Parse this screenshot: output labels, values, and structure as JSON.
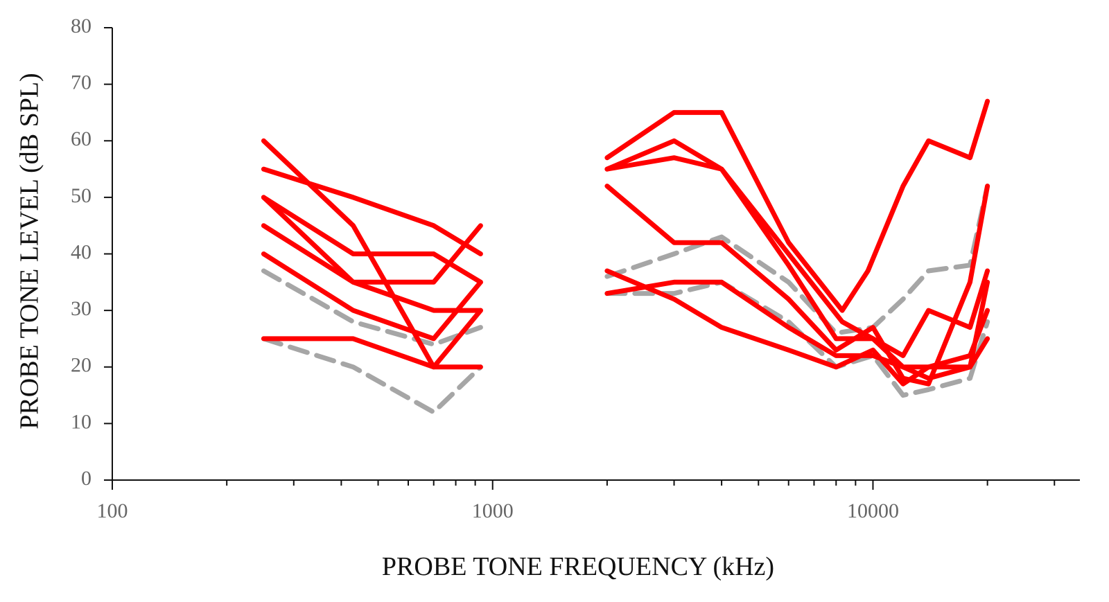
{
  "chart_data": {
    "type": "line",
    "title": "",
    "xlabel": "PROBE TONE FREQUENCY (kHz)",
    "ylabel": "PROBE TONE LEVEL (dB SPL)",
    "x_scale": "log",
    "xlim": [
      100,
      35000
    ],
    "ylim": [
      0,
      80
    ],
    "x_ticks": [
      100,
      1000,
      10000
    ],
    "x_tick_labels": [
      "100",
      "1000",
      "10000"
    ],
    "y_ticks": [
      0,
      10,
      20,
      30,
      40,
      50,
      60,
      70,
      80
    ],
    "y_tick_labels": [
      "0",
      "10",
      "20",
      "30",
      "40",
      "50",
      "60",
      "70",
      "80"
    ],
    "grid": false,
    "legend": "none",
    "colors": {
      "red": "#ff0000",
      "gray": "#a6a6a6"
    },
    "series": [
      {
        "color": "red",
        "dash": false,
        "x": [
          250,
          430,
          700,
          930
        ],
        "y": [
          60,
          45,
          20,
          20
        ]
      },
      {
        "color": "red",
        "dash": false,
        "x": [
          250,
          430,
          700,
          930
        ],
        "y": [
          55,
          50,
          45,
          40
        ]
      },
      {
        "color": "red",
        "dash": false,
        "x": [
          250,
          430,
          700,
          930
        ],
        "y": [
          50,
          40,
          40,
          35
        ]
      },
      {
        "color": "red",
        "dash": false,
        "x": [
          250,
          430,
          700,
          930
        ],
        "y": [
          50,
          35,
          35,
          45
        ]
      },
      {
        "color": "red",
        "dash": false,
        "x": [
          250,
          430,
          700,
          930
        ],
        "y": [
          45,
          35,
          30,
          30
        ]
      },
      {
        "color": "red",
        "dash": false,
        "x": [
          250,
          430,
          700,
          930
        ],
        "y": [
          40,
          30,
          25,
          35
        ]
      },
      {
        "color": "red",
        "dash": false,
        "x": [
          250,
          430,
          700,
          930
        ],
        "y": [
          25,
          25,
          20,
          30
        ]
      },
      {
        "color": "gray",
        "dash": true,
        "x": [
          250,
          430,
          700,
          930
        ],
        "y": [
          37,
          28,
          24,
          27
        ]
      },
      {
        "color": "gray",
        "dash": true,
        "x": [
          250,
          430,
          700,
          930
        ],
        "y": [
          25,
          20,
          12,
          20
        ]
      },
      {
        "color": "red",
        "dash": false,
        "x": [
          2000,
          3000,
          4000,
          6000,
          8300,
          9700,
          12000,
          14000,
          18000,
          20000
        ],
        "y": [
          57,
          65,
          65,
          42,
          30,
          37,
          52,
          60,
          57,
          67
        ]
      },
      {
        "color": "red",
        "dash": false,
        "x": [
          2000,
          3000,
          4000,
          6000,
          8300,
          10000,
          12000,
          14000,
          18000,
          20000
        ],
        "y": [
          55,
          60,
          55,
          40,
          28,
          25,
          22,
          30,
          27,
          37
        ]
      },
      {
        "color": "red",
        "dash": false,
        "x": [
          2000,
          3000,
          4000,
          6000,
          8000,
          10000,
          12000,
          14000,
          18000,
          20000
        ],
        "y": [
          55,
          57,
          55,
          38,
          25,
          25,
          20,
          20,
          20,
          35
        ]
      },
      {
        "color": "red",
        "dash": false,
        "x": [
          2000,
          3000,
          4000,
          6000,
          8000,
          10000,
          12000,
          14000,
          18000,
          20000
        ],
        "y": [
          52,
          42,
          42,
          32,
          23,
          27,
          18,
          17,
          35,
          52
        ]
      },
      {
        "color": "red",
        "dash": false,
        "x": [
          2000,
          3000,
          4000,
          6000,
          8000,
          10000,
          12000,
          14000,
          18000,
          20000
        ],
        "y": [
          37,
          32,
          27,
          23,
          20,
          23,
          17,
          20,
          22,
          30
        ]
      },
      {
        "color": "red",
        "dash": false,
        "x": [
          2000,
          3000,
          4000,
          6000,
          8000,
          10000,
          12000,
          14000,
          18000,
          20000
        ],
        "y": [
          33,
          35,
          35,
          27,
          22,
          22,
          20,
          18,
          20,
          25
        ]
      },
      {
        "color": "gray",
        "dash": true,
        "x": [
          2000,
          3000,
          4000,
          6000,
          8000,
          10000,
          12000,
          14000,
          18000,
          20000
        ],
        "y": [
          36,
          40,
          43,
          35,
          26,
          27,
          32,
          37,
          38,
          52
        ]
      },
      {
        "color": "gray",
        "dash": true,
        "x": [
          2000,
          3000,
          4000,
          6000,
          8000,
          10000,
          12000,
          14000,
          18000,
          20000
        ],
        "y": [
          33,
          33,
          35,
          28,
          20,
          22,
          15,
          16,
          18,
          28
        ]
      }
    ]
  }
}
